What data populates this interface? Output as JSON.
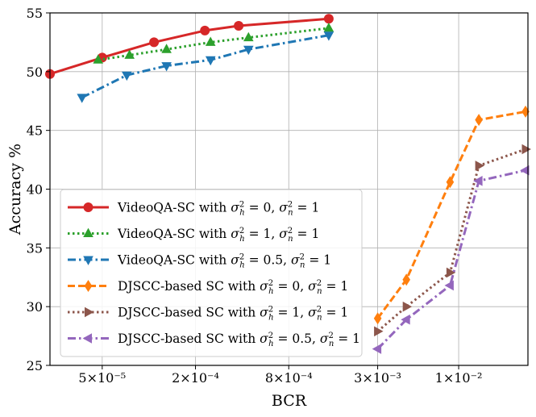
{
  "chart_data": {
    "type": "line",
    "xlabel": "BCR",
    "ylabel": "Accuracy %",
    "xscale": "log",
    "xlim": [
      2.3e-05,
      0.028
    ],
    "ylim": [
      25,
      55
    ],
    "grid": true,
    "legend_position": "center-left",
    "x_ticks": [
      {
        "value": 5e-05,
        "label": "5×10⁻⁵"
      },
      {
        "value": 0.0002,
        "label": "2×10⁻⁴"
      },
      {
        "value": 0.0008,
        "label": "8×10⁻⁴"
      },
      {
        "value": 0.003,
        "label": "3×10⁻³"
      },
      {
        "value": 0.01,
        "label": "1×10⁻²"
      }
    ],
    "y_ticks": [
      25,
      30,
      35,
      40,
      45,
      50,
      55
    ],
    "series": [
      {
        "name": "VideoQA-SC with σ²_h = 0, σ²_n = 1",
        "legend_prefix": "VideoQA-SC with",
        "h_value": "0",
        "n_value": "1",
        "color": "#d62728",
        "dash": "solid",
        "marker": "circle",
        "x": [
          2.3e-05,
          5e-05,
          0.000108,
          0.00023,
          0.00038,
          0.00145
        ],
        "y": [
          49.8,
          51.2,
          52.5,
          53.5,
          53.9,
          54.5
        ]
      },
      {
        "name": "VideoQA-SC with σ²_h = 1, σ²_n = 1",
        "legend_prefix": "VideoQA-SC with",
        "h_value": "1",
        "n_value": "1",
        "color": "#2ca02c",
        "dash": "dotted",
        "marker": "triangle-up",
        "x": [
          4.7e-05,
          7.5e-05,
          0.00013,
          0.00025,
          0.00044,
          0.00145
        ],
        "y": [
          51.0,
          51.4,
          51.9,
          52.5,
          52.9,
          53.7
        ]
      },
      {
        "name": "VideoQA-SC with σ²_h = 0.5, σ²_n = 1",
        "legend_prefix": "VideoQA-SC with",
        "h_value": "0.5",
        "n_value": "1",
        "color": "#1f77b4",
        "dash": "dashdot",
        "marker": "triangle-down",
        "x": [
          3.7e-05,
          7.2e-05,
          0.00013,
          0.00025,
          0.00044,
          0.00145
        ],
        "y": [
          47.8,
          49.7,
          50.5,
          51.0,
          51.9,
          53.1
        ]
      },
      {
        "name": "DJSCC-based SC with σ²_h = 0, σ²_n = 1",
        "legend_prefix": "DJSCC-based SC with",
        "h_value": "0",
        "n_value": "1",
        "color": "#ff7f0e",
        "dash": "dashed",
        "marker": "diamond",
        "x": [
          0.003,
          0.0046,
          0.0088,
          0.0135,
          0.027
        ],
        "y": [
          29.0,
          32.3,
          40.6,
          45.9,
          46.6
        ]
      },
      {
        "name": "DJSCC-based SC with σ²_h = 1, σ²_n = 1",
        "legend_prefix": "DJSCC-based SC with",
        "h_value": "1",
        "n_value": "1",
        "color": "#8c564b",
        "dash": "dotted",
        "marker": "triangle-right",
        "x": [
          0.003,
          0.0046,
          0.0088,
          0.0135,
          0.027
        ],
        "y": [
          27.9,
          30.0,
          32.9,
          42.0,
          43.4
        ]
      },
      {
        "name": "DJSCC-based SC with σ²_h = 0.5, σ²_n = 1",
        "legend_prefix": "DJSCC-based SC with",
        "h_value": "0.5",
        "n_value": "1",
        "color": "#9467bd",
        "dash": "dashdot",
        "marker": "triangle-left",
        "x": [
          0.003,
          0.0046,
          0.0088,
          0.0135,
          0.027
        ],
        "y": [
          26.4,
          28.9,
          31.8,
          40.7,
          41.6
        ]
      }
    ]
  }
}
